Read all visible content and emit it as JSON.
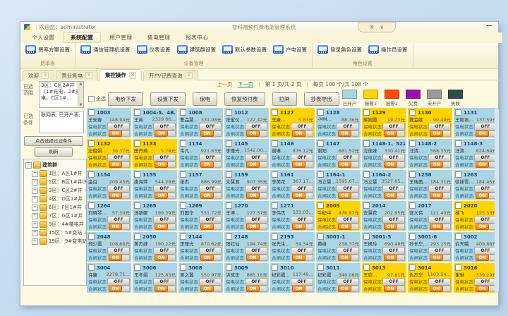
{
  "window": {
    "welcome": "欢迎您：administrator",
    "title": "智科福预付费电能管理系统",
    "btn_pin": "※",
    "btn_drop": "∨",
    "minimize": "—"
  },
  "menu": {
    "items": [
      {
        "label": "个人设置",
        "cls": ""
      },
      {
        "label": "系统配置",
        "cls": "selected"
      },
      {
        "label": "用户管理",
        "cls": ""
      },
      {
        "label": "售电管理",
        "cls": ""
      },
      {
        "label": "报表中心",
        "cls": ""
      }
    ]
  },
  "ribbon": {
    "groups": [
      {
        "label": "费率表",
        "buttons": [
          "费率方案设置"
        ]
      },
      {
        "label": "设备管理",
        "buttons": [
          "通信管理机设置",
          "仪表设置",
          "建筑群设置",
          "默认参数设置",
          "户电设置"
        ]
      },
      {
        "label": "角色设置",
        "buttons": [
          "登录角色设置",
          "操作员设置"
        ]
      }
    ]
  },
  "doc_tabs": {
    "close_glyph": "×",
    "tabs": [
      {
        "label": "欢迎",
        "cls": ""
      },
      {
        "label": "营业售电",
        "cls": ""
      },
      {
        "label": "集控操作",
        "cls": "active"
      },
      {
        "label": "开户/记费查询",
        "cls": ""
      }
    ]
  },
  "sidebar": {
    "range_label": "已选范围",
    "range_value": "3区：C区2#井（1#充电，2#充电，C区1#…",
    "cond_label": "已选条件",
    "cond_value": "联网表; 已开户表;",
    "up_arrow": "▲",
    "down_arrow": "▼",
    "filter_button": "点击选择过滤条件",
    "refresh_button": "刷新",
    "root_expander": "-",
    "item_expander": "+",
    "tree_root": "建筑群",
    "tree_items": [
      {
        "label": "1区：A区1#井"
      },
      {
        "label": "2区：B区1#井(B区1#…"
      },
      {
        "label": "3区：C区2#井（1#宿…"
      },
      {
        "label": "4区：D区1#井（D区1…"
      },
      {
        "label": "6区：F区1#井（F区1#…"
      },
      {
        "label": "7区：G区1#井"
      },
      {
        "label": "9区：4#楼电井（4#楼…"
      },
      {
        "label": "15区：5#变站（3#变…"
      },
      {
        "label": "19区：9#变电站（2#…"
      }
    ]
  },
  "pagination": {
    "prev": "上一页",
    "next": "下一页",
    "sep": "|",
    "page_info": "第 1 页/共 2 页",
    "per_info": "每页 100 个/共 108 个"
  },
  "toolbar": {
    "select_all": "全选",
    "buttons": [
      "电价下发",
      "设置下发",
      "保电",
      "恢复预付费",
      "拉闸",
      "抄表导出"
    ]
  },
  "legend": {
    "items": [
      {
        "label": "已开户",
        "color": "#a9d5e5"
      },
      {
        "label": "报警1",
        "color": "#ffd400"
      },
      {
        "label": "报警2",
        "color": "#ff4a0e"
      },
      {
        "label": "欠费",
        "color": "#9b0fb0"
      },
      {
        "label": "未开户",
        "color": "#9a9a9a"
      },
      {
        "label": "失联",
        "color": "#2e4d4b"
      }
    ]
  },
  "card_labels": {
    "power_keep": "保电状态",
    "switch_state": "合闸状态",
    "off": "OFF",
    "on": "ON"
  },
  "rooms": [
    {
      "id": "1003",
      "name": "王安春",
      "balance": "148.94元",
      "status": "open"
    },
    {
      "id": "1004-5、4B…",
      "name": "王英",
      "balance": "2329.66…",
      "status": "open"
    },
    {
      "id": "1008",
      "name": "曹品慧…",
      "balance": "331.08元",
      "status": "open"
    },
    {
      "id": "1012",
      "name": "张宝仪…",
      "balance": "122.42元",
      "status": "open"
    },
    {
      "id": "1127",
      "name": "王康…",
      "balance": "5.83元",
      "status": "alarm"
    },
    {
      "id": "1128",
      "name": "-MM…",
      "balance": "88.36元",
      "status": "open"
    },
    {
      "id": "1129",
      "name": "解婉霞…",
      "balance": "19.23元",
      "status": "alarm"
    },
    {
      "id": "1130",
      "name": "魏金献",
      "balance": "99.49元",
      "status": "alarm"
    },
    {
      "id": "1131",
      "name": "王毅君…",
      "balance": "137.59元",
      "status": "open"
    },
    {
      "id": "1132",
      "name": "左俊娟…",
      "balance": "36.37元",
      "status": "alarm"
    },
    {
      "id": "1133",
      "name": "田丹燕…",
      "balance": "5.78元",
      "status": "alarm"
    },
    {
      "id": "1134",
      "name": "韦凡…",
      "balance": "921.83元",
      "status": "open"
    },
    {
      "id": "1145",
      "name": "李瑾光…",
      "balance": "1542.00…",
      "status": "open"
    },
    {
      "id": "1146",
      "name": "谢琳…",
      "balance": "876.12元",
      "status": "open"
    },
    {
      "id": "1147",
      "name": "谢阳",
      "balance": "681.52元",
      "status": "open"
    },
    {
      "id": "1148-1、522",
      "name": "沈佳妹",
      "balance": "330.41元",
      "status": "open"
    },
    {
      "id": "1148-2",
      "name": "汪清…",
      "balance": "568.35元",
      "status": "open"
    },
    {
      "id": "1148-3",
      "name": "汪清…",
      "balance": "624.64元",
      "status": "open"
    },
    {
      "id": "1154",
      "name": "金白",
      "balance": "209.45元",
      "status": "open"
    },
    {
      "id": "1155",
      "name": "唐海萍",
      "balance": "544.28元",
      "status": "open"
    },
    {
      "id": "1157",
      "name": "张杰",
      "balance": "686.99元",
      "status": "open"
    },
    {
      "id": "1159",
      "name": "文慧君",
      "balance": "907.35元",
      "status": "open"
    },
    {
      "id": "1161",
      "name": "李美花",
      "balance": "367.17…",
      "status": "open"
    },
    {
      "id": "1164-1",
      "name": "冯立慧…",
      "balance": "1595.67…",
      "status": "open"
    },
    {
      "id": "1164-2",
      "name": "冯立慧",
      "balance": "3527.05…",
      "status": "open"
    },
    {
      "id": "1258",
      "name": "王瑞茜…",
      "balance": "184.31元",
      "status": "open"
    },
    {
      "id": "1263",
      "name": "徐妹雪…",
      "balance": "184.45元",
      "status": "open"
    },
    {
      "id": "1264",
      "name": "刘晓琴…",
      "balance": "57.30元",
      "status": "open"
    },
    {
      "id": "1265",
      "name": "汤新娜",
      "balance": "199.39元",
      "status": "open"
    },
    {
      "id": "1269",
      "name": "刘国华",
      "balance": "531.72元",
      "status": "open"
    },
    {
      "id": "1270",
      "name": "王坤…",
      "balance": "127.57元",
      "status": "open"
    },
    {
      "id": "1271",
      "name": "李伟杰",
      "balance": "533.03…",
      "status": "open"
    },
    {
      "id": "2005",
      "name": "牛纪中",
      "balance": "478.87元",
      "status": "alarm"
    },
    {
      "id": "2014",
      "name": "安慧花",
      "balance": "202.95元",
      "status": "open"
    },
    {
      "id": "2017",
      "name": "饶大伟",
      "balance": "121.40元",
      "status": "open"
    },
    {
      "id": "2020",
      "name": "桂飞",
      "balance": "155.53元",
      "status": "alarm"
    },
    {
      "id": "2048",
      "name": "郑少霞",
      "balance": "108.68元",
      "status": "open"
    },
    {
      "id": "2050",
      "name": "黄杰妹",
      "balance": "190.22元",
      "status": "open"
    },
    {
      "id": "2144",
      "name": "李瑾光",
      "balance": "870.62元",
      "status": "open"
    },
    {
      "id": "2148",
      "name": "阳红仙",
      "balance": "194.74元",
      "status": "open"
    },
    {
      "id": "2193",
      "name": "张先生…",
      "balance": "59.34元",
      "status": "open"
    },
    {
      "id": "3001-1",
      "name": "黄维",
      "balance": "238.37元",
      "status": "open"
    },
    {
      "id": "3001-5",
      "name": "王枫玲",
      "balance": "690.48元",
      "status": "open"
    },
    {
      "id": "3001-6",
      "name": "孙长华…",
      "balance": "293.15元",
      "status": "open"
    },
    {
      "id": "3002",
      "name": "俞天娥",
      "balance": "409.88元",
      "status": "open"
    },
    {
      "id": "3004",
      "name": "许康",
      "balance": "2278.71…",
      "status": "open"
    },
    {
      "id": "3006",
      "name": "王冬娟",
      "balance": "125.83元",
      "status": "open"
    },
    {
      "id": "3008",
      "name": "吴之翼",
      "balance": "550.97元",
      "status": "open"
    },
    {
      "id": "3009",
      "name": "洪成忠",
      "balance": "885.16元",
      "status": "open"
    },
    {
      "id": "3010",
      "name": "纪彩霞…",
      "balance": "117.49…",
      "status": "open"
    },
    {
      "id": "3011",
      "name": "纪彩霞",
      "balance": "348.06元",
      "status": "open"
    },
    {
      "id": "3013",
      "name": "王欣…",
      "balance": "97.81元",
      "status": "alarm"
    },
    {
      "id": "3014",
      "name": "仇杰华",
      "balance": "1103.54…",
      "status": "alarm"
    },
    {
      "id": "3016",
      "name": "谢琳",
      "balance": "339.29元",
      "status": "alarm"
    }
  ]
}
